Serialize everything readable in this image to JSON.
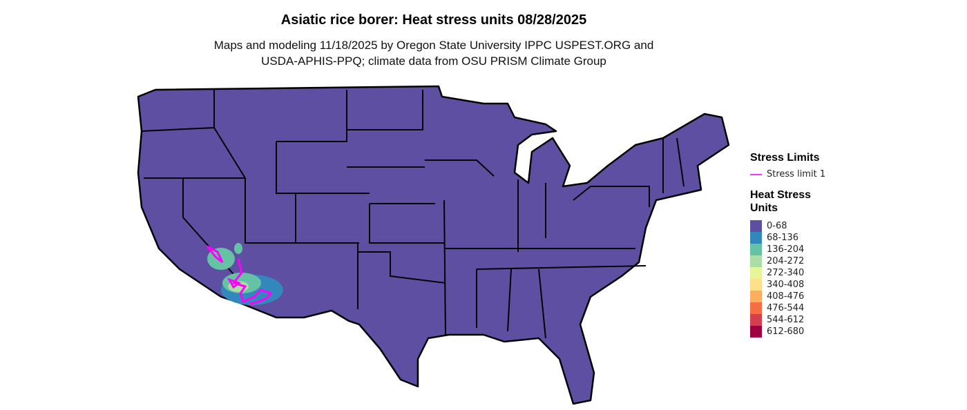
{
  "title": "Asiatic rice borer: Heat stress units 08/28/2025",
  "subtitle_line1": "Maps and modeling 11/18/2025 by Oregon State University IPPC USPEST.ORG and",
  "subtitle_line2": "USDA-APHIS-PPQ; climate data from OSU PRISM Climate Group",
  "map": {
    "region": "Contiguous United States",
    "base_fill": "#5E4FA2",
    "border_color": "#000000",
    "stress_limit_color": "#FF00FF"
  },
  "legend": {
    "stress_title": "Stress Limits",
    "stress_items": [
      {
        "label": "Stress limit 1",
        "color": "#FF33FF"
      }
    ],
    "hsu_title": "Heat Stress Units",
    "bins": [
      {
        "label": "0-68",
        "color": "#5E4FA2"
      },
      {
        "label": "68-136",
        "color": "#3288BD"
      },
      {
        "label": "136-204",
        "color": "#66C2A5"
      },
      {
        "label": "204-272",
        "color": "#ABDDA4"
      },
      {
        "label": "272-340",
        "color": "#E6F598"
      },
      {
        "label": "340-408",
        "color": "#FEE08B"
      },
      {
        "label": "408-476",
        "color": "#FDAE61"
      },
      {
        "label": "476-544",
        "color": "#F46D43"
      },
      {
        "label": "544-612",
        "color": "#D53E4F"
      },
      {
        "label": "612-680",
        "color": "#9E0142"
      }
    ]
  }
}
